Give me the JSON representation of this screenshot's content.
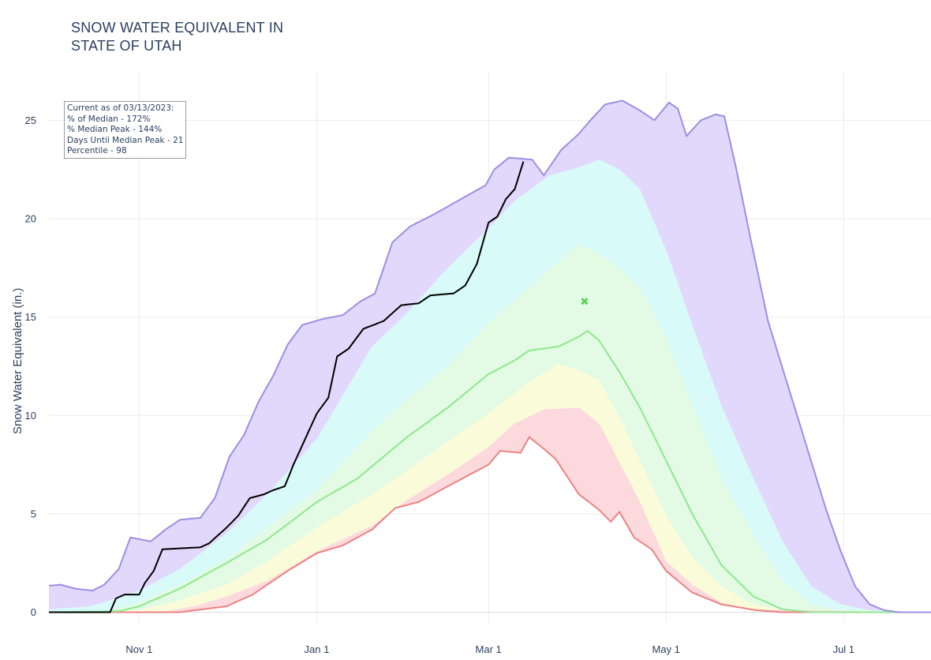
{
  "title_lines": [
    "SNOW WATER EQUIVALENT IN",
    "STATE OF UTAH"
  ],
  "info_box": {
    "lines": [
      "Current as of 03/13/2023:",
      "% of Median - 172%",
      "% Median Peak - 144%",
      "Days Until Median Peak - 21",
      "Percentile - 98"
    ]
  },
  "chart_data": {
    "type": "area",
    "title": "SNOW WATER EQUIVALENT IN STATE OF UTAH",
    "ylabel": "Snow Water Equivalent (in.)",
    "xlabel": "",
    "x_range": [
      "2022-10-01",
      "2023-07-31"
    ],
    "ylim": [
      -0.5,
      27.5
    ],
    "x_ticks": [
      {
        "date": "2022-11-01",
        "label": "Nov  1"
      },
      {
        "date": "2023-01-01",
        "label": "Jan  1"
      },
      {
        "date": "2023-03-01",
        "label": "Mar  1"
      },
      {
        "date": "2023-05-01",
        "label": "May  1"
      },
      {
        "date": "2023-07-01",
        "label": "Jul  1"
      }
    ],
    "y_ticks": [
      0,
      5,
      10,
      15,
      20,
      25
    ],
    "grid": true,
    "colors": {
      "max_line": "#9d8ee3",
      "max_fill": "#e2d8fb",
      "p90_fill": "#d8faf9",
      "p70_fill": "#e3fbe4",
      "median_line": "#8ee890",
      "p30_fill": "#fafbd8",
      "p10_fill": "#fbd9dd",
      "min_line": "#ec8383",
      "current_line": "#000000",
      "median_peak_marker": "#5ed35e"
    },
    "bands": {
      "max": [
        [
          "2022-10-01",
          1.35
        ],
        [
          "2022-10-05",
          1.4
        ],
        [
          "2022-10-10",
          1.2
        ],
        [
          "2022-10-16",
          1.1
        ],
        [
          "2022-10-20",
          1.4
        ],
        [
          "2022-10-25",
          2.2
        ],
        [
          "2022-10-29",
          3.8
        ],
        [
          "2022-11-05",
          3.6
        ],
        [
          "2022-11-10",
          4.2
        ],
        [
          "2022-11-15",
          4.7
        ],
        [
          "2022-11-22",
          4.8
        ],
        [
          "2022-11-27",
          5.8
        ],
        [
          "2022-12-02",
          7.9
        ],
        [
          "2022-12-07",
          9.0
        ],
        [
          "2022-12-12",
          10.7
        ],
        [
          "2022-12-17",
          12.0
        ],
        [
          "2022-12-22",
          13.6
        ],
        [
          "2022-12-27",
          14.6
        ],
        [
          "2023-01-03",
          14.9
        ],
        [
          "2023-01-10",
          15.1
        ],
        [
          "2023-01-16",
          15.8
        ],
        [
          "2023-01-21",
          16.2
        ],
        [
          "2023-01-27",
          18.8
        ],
        [
          "2023-02-02",
          19.6
        ],
        [
          "2023-02-10",
          20.2
        ],
        [
          "2023-02-16",
          20.7
        ],
        [
          "2023-02-22",
          21.2
        ],
        [
          "2023-02-28",
          21.7
        ],
        [
          "2023-03-03",
          22.5
        ],
        [
          "2023-03-08",
          23.1
        ],
        [
          "2023-03-16",
          23.0
        ],
        [
          "2023-03-20",
          22.2
        ],
        [
          "2023-03-26",
          23.5
        ],
        [
          "2023-04-01",
          24.3
        ],
        [
          "2023-04-05",
          25.0
        ],
        [
          "2023-04-10",
          25.8
        ],
        [
          "2023-04-16",
          26.0
        ],
        [
          "2023-04-22",
          25.5
        ],
        [
          "2023-04-27",
          25.0
        ],
        [
          "2023-05-02",
          25.9
        ],
        [
          "2023-05-05",
          25.6
        ],
        [
          "2023-05-08",
          24.2
        ],
        [
          "2023-05-13",
          25.0
        ],
        [
          "2023-05-18",
          25.3
        ],
        [
          "2023-05-21",
          25.2
        ],
        [
          "2023-05-25",
          22.6
        ],
        [
          "2023-05-30",
          19.0
        ],
        [
          "2023-06-05",
          14.8
        ],
        [
          "2023-06-10",
          12.4
        ],
        [
          "2023-06-15",
          10.0
        ],
        [
          "2023-06-20",
          7.6
        ],
        [
          "2023-06-25",
          5.2
        ],
        [
          "2023-06-30",
          3.1
        ],
        [
          "2023-07-05",
          1.3
        ],
        [
          "2023-07-10",
          0.4
        ],
        [
          "2023-07-15",
          0.1
        ],
        [
          "2023-07-20",
          0.0
        ],
        [
          "2023-07-31",
          0.0
        ]
      ],
      "p90": [
        [
          "2022-10-01",
          0.15
        ],
        [
          "2022-10-15",
          0.3
        ],
        [
          "2022-10-22",
          0.6
        ],
        [
          "2022-11-01",
          1.1
        ],
        [
          "2022-11-15",
          2.2
        ],
        [
          "2022-12-01",
          4.0
        ],
        [
          "2022-12-15",
          6.0
        ],
        [
          "2023-01-01",
          8.8
        ],
        [
          "2023-01-20",
          13.5
        ],
        [
          "2023-02-01",
          15.2
        ],
        [
          "2023-02-15",
          17.5
        ],
        [
          "2023-03-01",
          19.5
        ],
        [
          "2023-03-10",
          20.9
        ],
        [
          "2023-03-22",
          22.2
        ],
        [
          "2023-04-01",
          22.6
        ],
        [
          "2023-04-08",
          23.0
        ],
        [
          "2023-04-15",
          22.5
        ],
        [
          "2023-04-22",
          21.5
        ],
        [
          "2023-05-01",
          18.4
        ],
        [
          "2023-05-10",
          14.6
        ],
        [
          "2023-05-20",
          10.5
        ],
        [
          "2023-05-31",
          6.8
        ],
        [
          "2023-06-10",
          3.6
        ],
        [
          "2023-06-20",
          1.3
        ],
        [
          "2023-06-30",
          0.4
        ],
        [
          "2023-07-10",
          0.1
        ],
        [
          "2023-07-31",
          0.0
        ]
      ],
      "p70": [
        [
          "2022-10-01",
          0.0
        ],
        [
          "2022-10-22",
          0.1
        ],
        [
          "2022-11-01",
          0.5
        ],
        [
          "2022-11-15",
          1.4
        ],
        [
          "2022-12-01",
          2.7
        ],
        [
          "2022-12-15",
          4.3
        ],
        [
          "2023-01-01",
          6.2
        ],
        [
          "2023-01-20",
          9.2
        ],
        [
          "2023-02-01",
          10.8
        ],
        [
          "2023-02-15",
          12.5
        ],
        [
          "2023-03-01",
          14.7
        ],
        [
          "2023-03-15",
          16.5
        ],
        [
          "2023-04-01",
          18.7
        ],
        [
          "2023-04-08",
          18.2
        ],
        [
          "2023-04-15",
          17.5
        ],
        [
          "2023-04-22",
          16.5
        ],
        [
          "2023-05-01",
          13.9
        ],
        [
          "2023-05-10",
          10.5
        ],
        [
          "2023-05-20",
          6.8
        ],
        [
          "2023-05-31",
          3.9
        ],
        [
          "2023-06-10",
          1.6
        ],
        [
          "2023-06-20",
          0.4
        ],
        [
          "2023-06-30",
          0.1
        ],
        [
          "2023-07-31",
          0.0
        ]
      ],
      "median": [
        [
          "2022-10-01",
          0.0
        ],
        [
          "2022-10-25",
          0.05
        ],
        [
          "2022-11-01",
          0.3
        ],
        [
          "2022-11-15",
          1.2
        ],
        [
          "2022-12-01",
          2.5
        ],
        [
          "2022-12-15",
          3.7
        ],
        [
          "2023-01-01",
          5.6
        ],
        [
          "2023-01-15",
          6.8
        ],
        [
          "2023-02-01",
          8.9
        ],
        [
          "2023-02-15",
          10.4
        ],
        [
          "2023-03-01",
          12.1
        ],
        [
          "2023-03-10",
          12.8
        ],
        [
          "2023-03-15",
          13.3
        ],
        [
          "2023-03-25",
          13.5
        ],
        [
          "2023-04-01",
          14.0
        ],
        [
          "2023-04-04",
          14.3
        ],
        [
          "2023-04-08",
          13.8
        ],
        [
          "2023-04-15",
          12.2
        ],
        [
          "2023-04-22",
          10.4
        ],
        [
          "2023-05-01",
          7.7
        ],
        [
          "2023-05-10",
          5.0
        ],
        [
          "2023-05-20",
          2.4
        ],
        [
          "2023-05-31",
          0.8
        ],
        [
          "2023-06-10",
          0.15
        ],
        [
          "2023-06-20",
          0.0
        ],
        [
          "2023-07-31",
          0.0
        ]
      ],
      "p30": [
        [
          "2022-10-01",
          0.0
        ],
        [
          "2022-11-01",
          0.1
        ],
        [
          "2022-11-15",
          0.6
        ],
        [
          "2022-12-01",
          1.4
        ],
        [
          "2022-12-15",
          2.6
        ],
        [
          "2023-01-01",
          4.3
        ],
        [
          "2023-01-20",
          6.0
        ],
        [
          "2023-02-01",
          7.2
        ],
        [
          "2023-02-15",
          8.7
        ],
        [
          "2023-03-01",
          10.1
        ],
        [
          "2023-03-15",
          11.7
        ],
        [
          "2023-03-25",
          12.6
        ],
        [
          "2023-04-01",
          12.3
        ],
        [
          "2023-04-08",
          11.8
        ],
        [
          "2023-04-15",
          9.9
        ],
        [
          "2023-04-22",
          7.7
        ],
        [
          "2023-05-01",
          4.9
        ],
        [
          "2023-05-10",
          2.8
        ],
        [
          "2023-05-20",
          1.3
        ],
        [
          "2023-05-31",
          0.4
        ],
        [
          "2023-06-10",
          0.1
        ],
        [
          "2023-07-31",
          0.0
        ]
      ],
      "p10": [
        [
          "2022-10-01",
          0.0
        ],
        [
          "2022-11-10",
          0.05
        ],
        [
          "2022-11-20",
          0.3
        ],
        [
          "2022-12-01",
          0.8
        ],
        [
          "2022-12-15",
          1.6
        ],
        [
          "2023-01-01",
          3.1
        ],
        [
          "2023-01-20",
          4.4
        ],
        [
          "2023-02-01",
          5.7
        ],
        [
          "2023-02-15",
          7.0
        ],
        [
          "2023-03-01",
          8.4
        ],
        [
          "2023-03-10",
          9.6
        ],
        [
          "2023-03-20",
          10.3
        ],
        [
          "2023-04-01",
          10.4
        ],
        [
          "2023-04-08",
          9.6
        ],
        [
          "2023-04-15",
          7.6
        ],
        [
          "2023-04-22",
          5.6
        ],
        [
          "2023-05-01",
          2.6
        ],
        [
          "2023-05-10",
          1.4
        ],
        [
          "2023-05-20",
          0.5
        ],
        [
          "2023-05-31",
          0.15
        ],
        [
          "2023-07-31",
          0.0
        ]
      ],
      "min": [
        [
          "2022-10-01",
          0.0
        ],
        [
          "2022-11-15",
          0.0
        ],
        [
          "2022-11-20",
          0.1
        ],
        [
          "2022-12-01",
          0.3
        ],
        [
          "2022-12-10",
          0.9
        ],
        [
          "2022-12-15",
          1.4
        ],
        [
          "2022-12-22",
          2.1
        ],
        [
          "2023-01-01",
          3.0
        ],
        [
          "2023-01-10",
          3.4
        ],
        [
          "2023-01-20",
          4.2
        ],
        [
          "2023-01-28",
          5.3
        ],
        [
          "2023-02-05",
          5.6
        ],
        [
          "2023-02-15",
          6.4
        ],
        [
          "2023-03-01",
          7.5
        ],
        [
          "2023-03-05",
          8.2
        ],
        [
          "2023-03-12",
          8.1
        ],
        [
          "2023-03-15",
          8.9
        ],
        [
          "2023-03-20",
          8.3
        ],
        [
          "2023-03-24",
          7.8
        ],
        [
          "2023-04-01",
          6.0
        ],
        [
          "2023-04-08",
          5.2
        ],
        [
          "2023-04-12",
          4.6
        ],
        [
          "2023-04-15",
          5.1
        ],
        [
          "2023-04-20",
          3.8
        ],
        [
          "2023-04-26",
          3.2
        ],
        [
          "2023-05-01",
          2.1
        ],
        [
          "2023-05-10",
          1.0
        ],
        [
          "2023-05-20",
          0.4
        ],
        [
          "2023-06-01",
          0.1
        ],
        [
          "2023-06-10",
          0.0
        ],
        [
          "2023-07-31",
          0.0
        ]
      ]
    },
    "series": [
      {
        "name": "",
        "role": "current_year",
        "points": [
          [
            "2022-10-01",
            0.0
          ],
          [
            "2022-10-22",
            0.0
          ],
          [
            "2022-10-24",
            0.7
          ],
          [
            "2022-10-27",
            0.9
          ],
          [
            "2022-11-01",
            0.9
          ],
          [
            "2022-11-03",
            1.5
          ],
          [
            "2022-11-06",
            2.1
          ],
          [
            "2022-11-09",
            3.2
          ],
          [
            "2022-11-22",
            3.3
          ],
          [
            "2022-11-25",
            3.5
          ],
          [
            "2022-11-28",
            3.9
          ],
          [
            "2022-12-01",
            4.3
          ],
          [
            "2022-12-05",
            4.9
          ],
          [
            "2022-12-09",
            5.8
          ],
          [
            "2022-12-14",
            6.0
          ],
          [
            "2022-12-17",
            6.2
          ],
          [
            "2022-12-21",
            6.4
          ],
          [
            "2022-12-24",
            7.5
          ],
          [
            "2023-01-01",
            10.1
          ],
          [
            "2023-01-05",
            10.9
          ],
          [
            "2023-01-08",
            13.0
          ],
          [
            "2023-01-12",
            13.4
          ],
          [
            "2023-01-17",
            14.4
          ],
          [
            "2023-01-24",
            14.8
          ],
          [
            "2023-01-30",
            15.6
          ],
          [
            "2023-02-05",
            15.7
          ],
          [
            "2023-02-09",
            16.1
          ],
          [
            "2023-02-17",
            16.2
          ],
          [
            "2023-02-21",
            16.6
          ],
          [
            "2023-02-25",
            17.7
          ],
          [
            "2023-03-01",
            19.8
          ],
          [
            "2023-03-04",
            20.1
          ],
          [
            "2023-03-07",
            21.0
          ],
          [
            "2023-03-10",
            21.5
          ],
          [
            "2023-03-13",
            22.9
          ]
        ]
      }
    ],
    "median_peak": {
      "date": "2023-04-03",
      "value": 15.8
    }
  }
}
